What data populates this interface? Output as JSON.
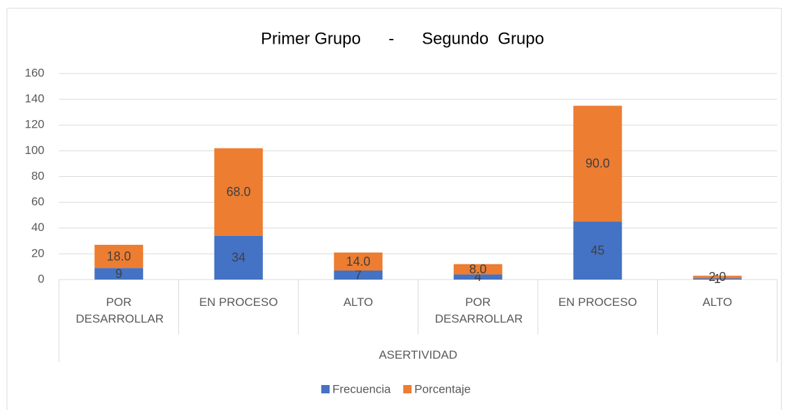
{
  "chart_data": {
    "type": "bar",
    "stacked": true,
    "title": "Primer Grupo      -      Segundo  Grupo",
    "categories": [
      "POR DESARROLLAR",
      "EN PROCESO",
      "ALTO",
      "POR DESARROLLAR",
      "EN PROCESO",
      "ALTO"
    ],
    "group_label": "ASERTIVIDAD",
    "series": [
      {
        "name": "Frecuencia",
        "color": "#4472c4",
        "values": [
          9,
          34,
          7,
          4,
          45,
          1
        ]
      },
      {
        "name": "Porcentaje",
        "color": "#ed7d31",
        "values": [
          18,
          68,
          14,
          8,
          90,
          2
        ],
        "value_labels": [
          "18.0",
          "68.0",
          "14.0",
          "8.0",
          "90.0",
          "2.0"
        ]
      }
    ],
    "ylim": [
      0,
      160
    ],
    "yticks": [
      0,
      20,
      40,
      60,
      80,
      100,
      120,
      140,
      160
    ],
    "grid": true,
    "legend": "bottom"
  }
}
